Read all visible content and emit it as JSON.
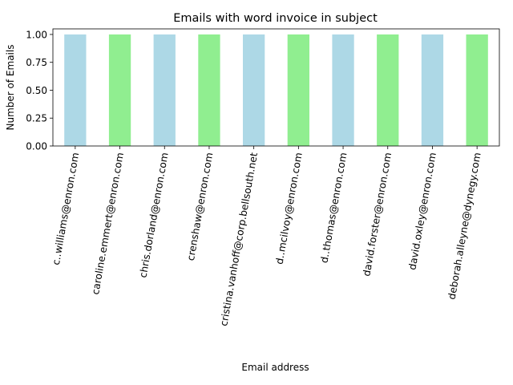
{
  "chart_data": {
    "type": "bar",
    "title": "Emails with word invoice in subject",
    "xlabel": "Email address",
    "ylabel": "Number of Emails",
    "categories": [
      "c..williams@enron.com",
      "caroline.emmert@enron.com",
      "chris.dorland@enron.com",
      "crenshaw@enron.com",
      "cristina.vanhoff@corp.bellsouth.net",
      "d..mcilvoy@enron.com",
      "d..thomas@enron.com",
      "david.forster@enron.com",
      "david.oxley@enron.com",
      "deborah.alleyne@dynegy.com"
    ],
    "values": [
      1,
      1,
      1,
      1,
      1,
      1,
      1,
      1,
      1,
      1
    ],
    "bar_colors": [
      "#add8e6",
      "#90ee90"
    ],
    "ylim": [
      0,
      1.05
    ],
    "yticks": [
      "0.00",
      "0.25",
      "0.50",
      "0.75",
      "1.00"
    ],
    "grid": false,
    "legend": "none"
  }
}
